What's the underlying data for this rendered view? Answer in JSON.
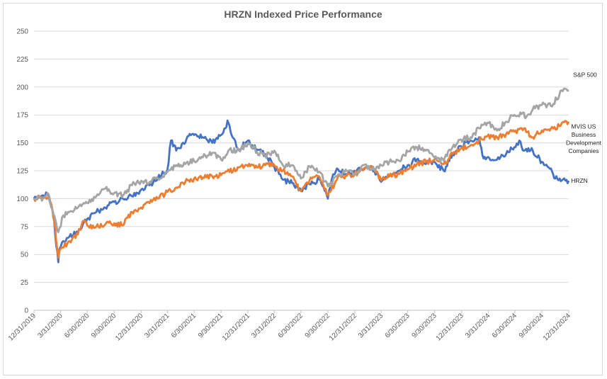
{
  "chart_data": {
    "type": "line",
    "title": "HRZN Indexed Price Performance",
    "xlabel": "",
    "ylabel": "",
    "ylim": [
      0,
      250
    ],
    "yticks": [
      0,
      25,
      50,
      75,
      100,
      125,
      150,
      175,
      200,
      225,
      250
    ],
    "xlim": [
      "2019-12-31",
      "2024-12-31"
    ],
    "xticks": [
      "12/31/2019",
      "3/31/2020",
      "6/30/2020",
      "9/30/2020",
      "12/31/2020",
      "3/31/2021",
      "6/30/2021",
      "9/30/2021",
      "12/31/2021",
      "3/31/2022",
      "6/30/2022",
      "9/30/2022",
      "12/31/2022",
      "3/31/2023",
      "6/30/2023",
      "9/30/2023",
      "12/31/2023",
      "3/31/2024",
      "6/30/2024",
      "9/30/2024",
      "12/31/2024"
    ],
    "grid": true,
    "legend": "end-of-line labels",
    "series": [
      {
        "name": "HRZN",
        "color": "#4472c4",
        "points": [
          [
            "2019-12-31",
            100
          ],
          [
            "2020-01-15",
            102
          ],
          [
            "2020-01-31",
            103
          ],
          [
            "2020-02-14",
            104
          ],
          [
            "2020-02-28",
            95
          ],
          [
            "2020-03-09",
            80
          ],
          [
            "2020-03-16",
            58
          ],
          [
            "2020-03-23",
            43
          ],
          [
            "2020-03-27",
            55
          ],
          [
            "2020-04-09",
            62
          ],
          [
            "2020-04-30",
            66
          ],
          [
            "2020-05-29",
            70
          ],
          [
            "2020-06-15",
            77
          ],
          [
            "2020-06-30",
            82
          ],
          [
            "2020-07-31",
            88
          ],
          [
            "2020-08-31",
            92
          ],
          [
            "2020-09-30",
            97
          ],
          [
            "2020-10-30",
            100
          ],
          [
            "2020-11-30",
            102
          ],
          [
            "2020-12-31",
            108
          ],
          [
            "2021-01-29",
            112
          ],
          [
            "2021-02-26",
            118
          ],
          [
            "2021-03-31",
            126
          ],
          [
            "2021-04-12",
            152
          ],
          [
            "2021-04-30",
            143
          ],
          [
            "2021-05-31",
            150
          ],
          [
            "2021-06-15",
            158
          ],
          [
            "2021-06-30",
            157
          ],
          [
            "2021-07-30",
            155
          ],
          [
            "2021-08-31",
            150
          ],
          [
            "2021-09-30",
            157
          ],
          [
            "2021-10-15",
            163
          ],
          [
            "2021-10-22",
            170
          ],
          [
            "2021-11-05",
            157
          ],
          [
            "2021-11-30",
            144
          ],
          [
            "2021-12-31",
            152
          ],
          [
            "2022-01-31",
            144
          ],
          [
            "2022-02-28",
            140
          ],
          [
            "2022-03-31",
            128
          ],
          [
            "2022-04-29",
            117
          ],
          [
            "2022-05-31",
            114
          ],
          [
            "2022-06-30",
            107
          ],
          [
            "2022-07-29",
            113
          ],
          [
            "2022-08-31",
            117
          ],
          [
            "2022-09-30",
            100
          ],
          [
            "2022-10-14",
            118
          ],
          [
            "2022-10-31",
            127
          ],
          [
            "2022-11-30",
            122
          ],
          [
            "2022-12-30",
            125
          ],
          [
            "2023-01-31",
            126
          ],
          [
            "2023-02-28",
            128
          ],
          [
            "2023-03-31",
            115
          ],
          [
            "2023-04-28",
            120
          ],
          [
            "2023-05-31",
            125
          ],
          [
            "2023-06-30",
            130
          ],
          [
            "2023-07-31",
            135
          ],
          [
            "2023-08-31",
            131
          ],
          [
            "2023-09-29",
            133
          ],
          [
            "2023-10-31",
            125
          ],
          [
            "2023-11-30",
            140
          ],
          [
            "2023-12-29",
            147
          ],
          [
            "2024-01-31",
            152
          ],
          [
            "2024-02-29",
            155
          ],
          [
            "2024-03-15",
            136
          ],
          [
            "2024-04-30",
            135
          ],
          [
            "2024-05-31",
            140
          ],
          [
            "2024-06-28",
            146
          ],
          [
            "2024-07-15",
            152
          ],
          [
            "2024-07-31",
            143
          ],
          [
            "2024-08-30",
            143
          ],
          [
            "2024-09-30",
            133
          ],
          [
            "2024-10-31",
            127
          ],
          [
            "2024-11-15",
            118
          ],
          [
            "2024-11-30",
            118
          ],
          [
            "2024-12-31",
            116
          ]
        ]
      },
      {
        "name": "MVIS US Business Development Companies",
        "color": "#ed7d31",
        "points": [
          [
            "2019-12-31",
            100
          ],
          [
            "2020-01-31",
            101
          ],
          [
            "2020-02-21",
            102
          ],
          [
            "2020-02-28",
            95
          ],
          [
            "2020-03-09",
            80
          ],
          [
            "2020-03-16",
            62
          ],
          [
            "2020-03-23",
            47
          ],
          [
            "2020-03-31",
            55
          ],
          [
            "2020-04-30",
            62
          ],
          [
            "2020-05-29",
            68
          ],
          [
            "2020-06-15",
            80
          ],
          [
            "2020-06-30",
            76
          ],
          [
            "2020-07-31",
            75
          ],
          [
            "2020-08-31",
            77
          ],
          [
            "2020-09-30",
            78
          ],
          [
            "2020-10-30",
            76
          ],
          [
            "2020-11-30",
            88
          ],
          [
            "2020-12-31",
            92
          ],
          [
            "2021-01-29",
            96
          ],
          [
            "2021-02-26",
            100
          ],
          [
            "2021-03-31",
            106
          ],
          [
            "2021-04-30",
            110
          ],
          [
            "2021-05-31",
            115
          ],
          [
            "2021-06-30",
            118
          ],
          [
            "2021-07-30",
            119
          ],
          [
            "2021-08-31",
            120
          ],
          [
            "2021-09-30",
            121
          ],
          [
            "2021-10-29",
            124
          ],
          [
            "2021-11-30",
            128
          ],
          [
            "2021-12-31",
            129
          ],
          [
            "2022-01-31",
            128
          ],
          [
            "2022-02-28",
            130
          ],
          [
            "2022-03-31",
            130
          ],
          [
            "2022-04-29",
            125
          ],
          [
            "2022-05-31",
            120
          ],
          [
            "2022-06-30",
            107
          ],
          [
            "2022-07-29",
            116
          ],
          [
            "2022-08-31",
            120
          ],
          [
            "2022-09-30",
            103
          ],
          [
            "2022-10-31",
            117
          ],
          [
            "2022-11-30",
            121
          ],
          [
            "2022-12-30",
            122
          ],
          [
            "2023-01-31",
            127
          ],
          [
            "2023-02-28",
            129
          ],
          [
            "2023-03-31",
            116
          ],
          [
            "2023-04-28",
            120
          ],
          [
            "2023-05-31",
            122
          ],
          [
            "2023-06-30",
            126
          ],
          [
            "2023-07-31",
            131
          ],
          [
            "2023-08-31",
            133
          ],
          [
            "2023-09-29",
            135
          ],
          [
            "2023-10-31",
            131
          ],
          [
            "2023-11-30",
            140
          ],
          [
            "2023-12-29",
            145
          ],
          [
            "2024-01-31",
            148
          ],
          [
            "2024-02-29",
            152
          ],
          [
            "2024-03-28",
            156
          ],
          [
            "2024-04-30",
            155
          ],
          [
            "2024-05-31",
            158
          ],
          [
            "2024-06-28",
            160
          ],
          [
            "2024-07-31",
            163
          ],
          [
            "2024-08-30",
            155
          ],
          [
            "2024-09-30",
            161
          ],
          [
            "2024-10-31",
            163
          ],
          [
            "2024-11-29",
            165
          ],
          [
            "2024-12-31",
            169
          ]
        ]
      },
      {
        "name": "S&P 500",
        "color": "#a5a5a5",
        "points": [
          [
            "2019-12-31",
            100
          ],
          [
            "2020-01-31",
            100
          ],
          [
            "2020-02-19",
            104
          ],
          [
            "2020-02-28",
            92
          ],
          [
            "2020-03-09",
            85
          ],
          [
            "2020-03-23",
            70
          ],
          [
            "2020-04-09",
            85
          ],
          [
            "2020-04-30",
            88
          ],
          [
            "2020-05-29",
            92
          ],
          [
            "2020-06-30",
            96
          ],
          [
            "2020-07-31",
            102
          ],
          [
            "2020-08-31",
            109
          ],
          [
            "2020-09-30",
            105
          ],
          [
            "2020-10-30",
            103
          ],
          [
            "2020-11-30",
            112
          ],
          [
            "2020-12-31",
            116
          ],
          [
            "2021-01-29",
            115
          ],
          [
            "2021-02-26",
            118
          ],
          [
            "2021-03-31",
            124
          ],
          [
            "2021-04-30",
            130
          ],
          [
            "2021-05-31",
            131
          ],
          [
            "2021-06-30",
            134
          ],
          [
            "2021-07-30",
            137
          ],
          [
            "2021-08-31",
            141
          ],
          [
            "2021-09-30",
            135
          ],
          [
            "2021-10-29",
            144
          ],
          [
            "2021-11-30",
            143
          ],
          [
            "2021-12-31",
            150
          ],
          [
            "2022-01-31",
            142
          ],
          [
            "2022-02-28",
            138
          ],
          [
            "2022-03-31",
            143
          ],
          [
            "2022-04-29",
            130
          ],
          [
            "2022-05-31",
            130
          ],
          [
            "2022-06-30",
            118
          ],
          [
            "2022-07-29",
            129
          ],
          [
            "2022-08-31",
            124
          ],
          [
            "2022-09-30",
            111
          ],
          [
            "2022-10-31",
            120
          ],
          [
            "2022-11-30",
            126
          ],
          [
            "2022-12-30",
            121
          ],
          [
            "2023-01-31",
            130
          ],
          [
            "2023-02-28",
            126
          ],
          [
            "2023-03-31",
            130
          ],
          [
            "2023-04-28",
            133
          ],
          [
            "2023-05-31",
            134
          ],
          [
            "2023-06-30",
            142
          ],
          [
            "2023-07-31",
            146
          ],
          [
            "2023-08-31",
            143
          ],
          [
            "2023-09-29",
            137
          ],
          [
            "2023-10-31",
            134
          ],
          [
            "2023-11-30",
            146
          ],
          [
            "2023-12-29",
            153
          ],
          [
            "2024-01-31",
            155
          ],
          [
            "2024-02-29",
            163
          ],
          [
            "2024-03-28",
            168
          ],
          [
            "2024-04-30",
            161
          ],
          [
            "2024-05-31",
            169
          ],
          [
            "2024-06-28",
            175
          ],
          [
            "2024-07-31",
            177
          ],
          [
            "2024-08-05",
            172
          ],
          [
            "2024-08-30",
            180
          ],
          [
            "2024-09-30",
            184
          ],
          [
            "2024-10-31",
            183
          ],
          [
            "2024-11-29",
            193
          ],
          [
            "2024-12-06",
            197
          ],
          [
            "2024-12-31",
            197
          ]
        ]
      }
    ]
  }
}
